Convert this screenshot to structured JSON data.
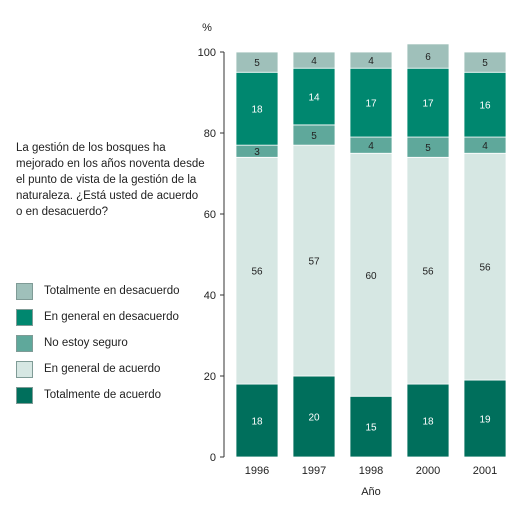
{
  "question": "La gestión de los bosques ha mejorado en los años noventa desde el punto de vista de la gestión de la naturaleza. ¿Está usted de acuerdo o en desacuerdo?",
  "chart_data": {
    "type": "bar",
    "stacked": true,
    "categories": [
      "1996",
      "1997",
      "1998",
      "2000",
      "2001"
    ],
    "xlabel": "Año",
    "ylabel": "%",
    "ylim": [
      0,
      100
    ],
    "yticks": [
      0,
      20,
      40,
      60,
      80,
      100
    ],
    "grid": false,
    "legend_position": "left",
    "series": [
      {
        "name": "Totalmente de acuerdo",
        "color": "#006f5c",
        "label_color": "#ffffff",
        "values": [
          18,
          20,
          15,
          18,
          19
        ]
      },
      {
        "name": "En general de acuerdo",
        "color": "#d6e7e3",
        "label_color": "#222222",
        "values": [
          56,
          57,
          60,
          56,
          56
        ]
      },
      {
        "name": "No estoy seguro",
        "color": "#5fa89b",
        "label_color": "#222222",
        "values": [
          3,
          5,
          4,
          5,
          4
        ]
      },
      {
        "name": "En general en desacuerdo",
        "color": "#00876f",
        "label_color": "#ffffff",
        "values": [
          18,
          14,
          17,
          17,
          16
        ]
      },
      {
        "name": "Totalmente en desacuerdo",
        "color": "#9fc0ba",
        "label_color": "#222222",
        "values": [
          5,
          4,
          4,
          6,
          5
        ]
      }
    ],
    "legend_order": [
      "Totalmente en desacuerdo",
      "En general en desacuerdo",
      "No estoy seguro",
      "En general de acuerdo",
      "Totalmente de acuerdo"
    ]
  }
}
